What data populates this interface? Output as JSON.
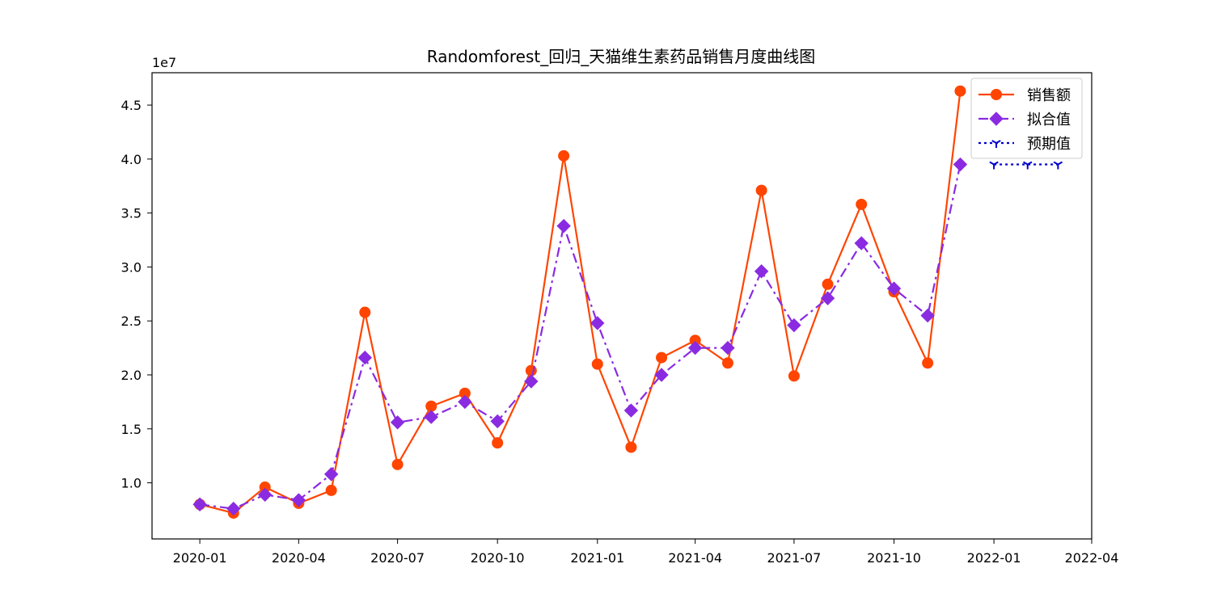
{
  "chart_data": {
    "type": "line",
    "title": "Randomforest_回归_天猫维生素药品销售月度曲线图",
    "xlabel": "",
    "ylabel": "",
    "y_offset_label": "1e7",
    "x_tick_labels": [
      "2020-01",
      "2020-04",
      "2020-07",
      "2020-10",
      "2021-01",
      "2021-04",
      "2021-07",
      "2021-10",
      "2022-01",
      "2022-04"
    ],
    "y_tick_labels": [
      "1.0",
      "1.5",
      "2.0",
      "2.5",
      "3.0",
      "3.5",
      "4.0",
      "4.5"
    ],
    "y_ticks": [
      1.0,
      1.5,
      2.0,
      2.5,
      3.0,
      3.5,
      4.0,
      4.5
    ],
    "y_unit_scale": 10000000,
    "xlim": [
      "2019-11-18",
      "2022-04-01"
    ],
    "ylim": [
      0.48,
      4.8
    ],
    "grid": false,
    "legend_position": "top-right",
    "series": [
      {
        "name": "销售额",
        "color": "#ff4500",
        "marker": "circle",
        "linestyle": "solid",
        "x": [
          "2020-01",
          "2020-02",
          "2020-03",
          "2020-04",
          "2020-05",
          "2020-06",
          "2020-07",
          "2020-08",
          "2020-09",
          "2020-10",
          "2020-11",
          "2020-12",
          "2021-01",
          "2021-02",
          "2021-03",
          "2021-04",
          "2021-05",
          "2021-06",
          "2021-07",
          "2021-08",
          "2021-09",
          "2021-10",
          "2021-11",
          "2021-12"
        ],
        "values": [
          0.8,
          0.72,
          0.96,
          0.81,
          0.93,
          2.58,
          1.17,
          1.71,
          1.83,
          1.37,
          2.04,
          4.03,
          2.1,
          1.33,
          2.16,
          2.32,
          2.11,
          3.71,
          1.99,
          2.84,
          3.58,
          2.77,
          2.11,
          4.63
        ]
      },
      {
        "name": "拟合值",
        "color": "#8a2be2",
        "marker": "diamond",
        "linestyle": "dashdot",
        "x": [
          "2020-01",
          "2020-02",
          "2020-03",
          "2020-04",
          "2020-05",
          "2020-06",
          "2020-07",
          "2020-08",
          "2020-09",
          "2020-10",
          "2020-11",
          "2020-12",
          "2021-01",
          "2021-02",
          "2021-03",
          "2021-04",
          "2021-05",
          "2021-06",
          "2021-07",
          "2021-08",
          "2021-09",
          "2021-10",
          "2021-11",
          "2021-12"
        ],
        "values": [
          0.8,
          0.76,
          0.89,
          0.84,
          1.08,
          2.16,
          1.56,
          1.61,
          1.75,
          1.57,
          1.94,
          3.38,
          2.48,
          1.67,
          2.0,
          2.25,
          2.25,
          2.96,
          2.46,
          2.71,
          3.22,
          2.8,
          2.55,
          3.95
        ]
      },
      {
        "name": "预期值",
        "color": "#0000cd",
        "marker": "tri_down",
        "linestyle": "dotted",
        "x": [
          "2022-01",
          "2022-02",
          "2022-03"
        ],
        "values": [
          3.95,
          3.95,
          3.95
        ]
      }
    ]
  }
}
